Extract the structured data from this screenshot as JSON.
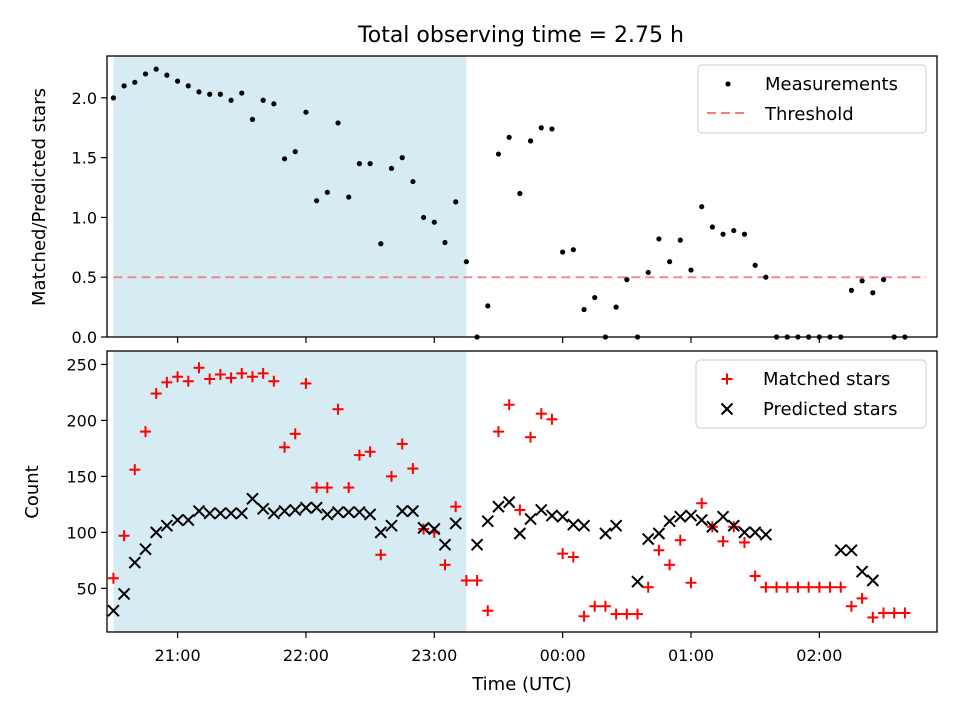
{
  "figure": {
    "title": "Total observing time = 2.75 h"
  },
  "colors": {
    "shade": "#add8e6",
    "threshold": "#f08080",
    "matched": "#ff0000",
    "predicted": "#000000",
    "measurement": "#000000"
  },
  "chart_data": [
    {
      "type": "scatter",
      "ylabel": "Matched/Predicted stars",
      "xlim": [
        "20:27",
        "02:55"
      ],
      "ylim": [
        0,
        2.35
      ],
      "yticks": [
        "0.0",
        "0.5",
        "1.0",
        "1.5",
        "2.0"
      ],
      "ytick_values": [
        0,
        0.5,
        1.0,
        1.5,
        2.0
      ],
      "shaded_interval": [
        "20:30",
        "23:15"
      ],
      "legend": {
        "position": "top-right",
        "entries": [
          "Measurements",
          "Threshold"
        ]
      },
      "series": [
        {
          "name": "Measurements",
          "marker": "dot",
          "x": [
            "20:30",
            "20:35",
            "20:40",
            "20:45",
            "20:50",
            "20:55",
            "21:00",
            "21:05",
            "21:10",
            "21:15",
            "21:20",
            "21:25",
            "21:30",
            "21:35",
            "21:40",
            "21:45",
            "21:50",
            "21:55",
            "22:00",
            "22:05",
            "22:10",
            "22:15",
            "22:20",
            "22:25",
            "22:30",
            "22:35",
            "22:40",
            "22:45",
            "22:50",
            "22:55",
            "23:00",
            "23:05",
            "23:10",
            "23:15",
            "23:20",
            "23:25",
            "23:30",
            "23:35",
            "23:40",
            "23:45",
            "23:50",
            "23:55",
            "00:00",
            "00:05",
            "00:10",
            "00:15",
            "00:20",
            "00:25",
            "00:30",
            "00:35",
            "00:40",
            "00:45",
            "00:50",
            "00:55",
            "01:00",
            "01:05",
            "01:10",
            "01:15",
            "01:20",
            "01:25",
            "01:30",
            "01:35",
            "01:40",
            "01:45",
            "01:50",
            "01:55",
            "02:00",
            "02:05",
            "02:10",
            "02:15",
            "02:20",
            "02:25",
            "02:30",
            "02:35",
            "02:40"
          ],
          "y": [
            2.0,
            2.1,
            2.13,
            2.2,
            2.24,
            2.19,
            2.14,
            2.1,
            2.05,
            2.03,
            2.03,
            1.98,
            2.04,
            1.82,
            1.98,
            1.95,
            1.49,
            1.55,
            1.88,
            1.14,
            1.21,
            1.79,
            1.17,
            1.45,
            1.45,
            0.78,
            1.41,
            1.5,
            1.3,
            1.0,
            0.96,
            0.79,
            1.13,
            0.63,
            0.0,
            0.26,
            1.53,
            1.67,
            1.2,
            1.64,
            1.75,
            1.74,
            0.71,
            0.73,
            0.23,
            0.33,
            0.0,
            0.25,
            0.48,
            0.0,
            0.54,
            0.82,
            0.63,
            0.81,
            0.56,
            1.09,
            0.92,
            0.86,
            0.89,
            0.86,
            0.6,
            0.5,
            0.0,
            0.0,
            0.0,
            0.0,
            0.0,
            0.0,
            0.0,
            0.39,
            0.47,
            0.37,
            0.48,
            0.0,
            0.0
          ]
        },
        {
          "name": "Threshold",
          "style": "dashed",
          "x": [
            "20:30",
            "02:50"
          ],
          "y": [
            0.5,
            0.5
          ]
        }
      ]
    },
    {
      "type": "scatter",
      "xlabel": "Time (UTC)",
      "ylabel": "Count",
      "xlim": [
        "20:27",
        "02:55"
      ],
      "ylim": [
        11,
        262
      ],
      "xticks": [
        "21:00",
        "22:00",
        "23:00",
        "00:00",
        "01:00",
        "02:00"
      ],
      "yticks": [
        "50",
        "100",
        "150",
        "200",
        "250"
      ],
      "ytick_values": [
        50,
        100,
        150,
        200,
        250
      ],
      "shaded_interval": [
        "20:30",
        "23:15"
      ],
      "legend": {
        "position": "top-right",
        "entries": [
          "Matched stars",
          "Predicted stars"
        ]
      },
      "series": [
        {
          "name": "Matched stars",
          "marker": "plus",
          "x": [
            "20:30",
            "20:35",
            "20:40",
            "20:45",
            "20:50",
            "20:55",
            "21:00",
            "21:05",
            "21:10",
            "21:15",
            "21:20",
            "21:25",
            "21:30",
            "21:35",
            "21:40",
            "21:45",
            "21:50",
            "21:55",
            "22:00",
            "22:05",
            "22:10",
            "22:15",
            "22:20",
            "22:25",
            "22:30",
            "22:35",
            "22:40",
            "22:45",
            "22:50",
            "22:55",
            "23:00",
            "23:05",
            "23:10",
            "23:15",
            "23:20",
            "23:25",
            "23:30",
            "23:35",
            "23:40",
            "23:45",
            "23:50",
            "23:55",
            "00:00",
            "00:05",
            "00:10",
            "00:15",
            "00:20",
            "00:25",
            "00:30",
            "00:35",
            "00:40",
            "00:45",
            "00:50",
            "00:55",
            "01:00",
            "01:05",
            "01:10",
            "01:15",
            "01:20",
            "01:25",
            "01:30",
            "01:35",
            "01:40",
            "01:45",
            "01:50",
            "01:55",
            "02:00",
            "02:05",
            "02:10",
            "02:15",
            "02:20",
            "02:25",
            "02:30",
            "02:35",
            "02:40"
          ],
          "y": [
            59,
            97,
            156,
            190,
            224,
            234,
            239,
            235,
            247,
            237,
            241,
            238,
            242,
            239,
            242,
            235,
            176,
            188,
            233,
            140,
            140,
            210,
            140,
            169,
            172,
            80,
            150,
            179,
            157,
            103,
            100,
            71,
            123,
            57,
            57,
            30,
            190,
            214,
            120,
            185,
            206,
            201,
            81,
            78,
            25,
            34,
            34,
            27,
            27,
            27,
            51,
            84,
            71,
            93,
            55,
            126,
            105,
            92,
            105,
            91,
            61,
            51,
            51,
            51,
            51,
            51,
            51,
            51,
            51,
            34,
            41,
            24,
            28,
            28,
            28
          ]
        },
        {
          "name": "Predicted stars",
          "marker": "x",
          "x": [
            "20:30",
            "20:35",
            "20:40",
            "20:45",
            "20:50",
            "20:55",
            "21:00",
            "21:05",
            "21:10",
            "21:15",
            "21:20",
            "21:25",
            "21:30",
            "21:35",
            "21:40",
            "21:45",
            "21:50",
            "21:55",
            "22:00",
            "22:05",
            "22:10",
            "22:15",
            "22:20",
            "22:25",
            "22:30",
            "22:35",
            "22:40",
            "22:45",
            "22:50",
            "22:55",
            "23:00",
            "23:05",
            "23:10",
            "23:20",
            "23:25",
            "23:30",
            "23:35",
            "23:40",
            "23:45",
            "23:50",
            "23:55",
            "00:00",
            "00:05",
            "00:10",
            "00:20",
            "00:25",
            "00:35",
            "00:40",
            "00:45",
            "00:50",
            "00:55",
            "01:00",
            "01:05",
            "01:10",
            "01:15",
            "01:20",
            "01:25",
            "01:30",
            "01:35",
            "02:10",
            "02:15",
            "02:20",
            "02:25"
          ],
          "y": [
            30,
            45,
            73,
            85,
            100,
            106,
            111,
            111,
            119,
            117,
            117,
            117,
            117,
            130,
            121,
            117,
            119,
            120,
            122,
            122,
            116,
            118,
            118,
            118,
            116,
            100,
            106,
            119,
            119,
            104,
            103,
            89,
            108,
            89,
            110,
            123,
            127,
            99,
            112,
            120,
            115,
            114,
            107,
            106,
            99,
            106,
            56,
            94,
            99,
            110,
            114,
            115,
            111,
            105,
            114,
            106,
            100,
            100,
            98,
            84,
            84,
            65,
            57
          ]
        }
      ]
    }
  ]
}
